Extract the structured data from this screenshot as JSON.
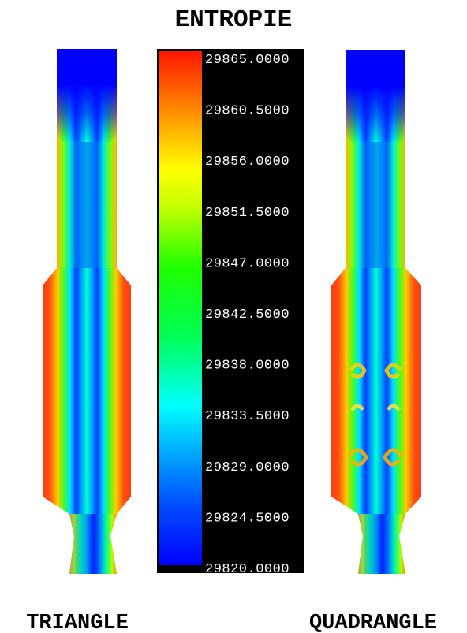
{
  "figure": {
    "title": "ENTROPIE",
    "left_caption": "TRIANGLE",
    "right_caption": "QUADRANGLE"
  },
  "colorbar": {
    "labels": [
      "29865.0000",
      "29860.5000",
      "29856.0000",
      "29851.5000",
      "29847.0000",
      "29842.5000",
      "29838.0000",
      "29833.5000",
      "29829.0000",
      "29824.5000",
      "29820.0000"
    ],
    "min": 29820.0,
    "max": 29865.0,
    "colors": [
      "#0000ff",
      "#0080ff",
      "#00ffff",
      "#00ff40",
      "#80ff00",
      "#ffff00",
      "#ff8000",
      "#ff0000"
    ],
    "background": "#000000"
  },
  "colors": {
    "low": "#0000ff",
    "mid": "#00ff80",
    "high": "#ff3c10"
  }
}
